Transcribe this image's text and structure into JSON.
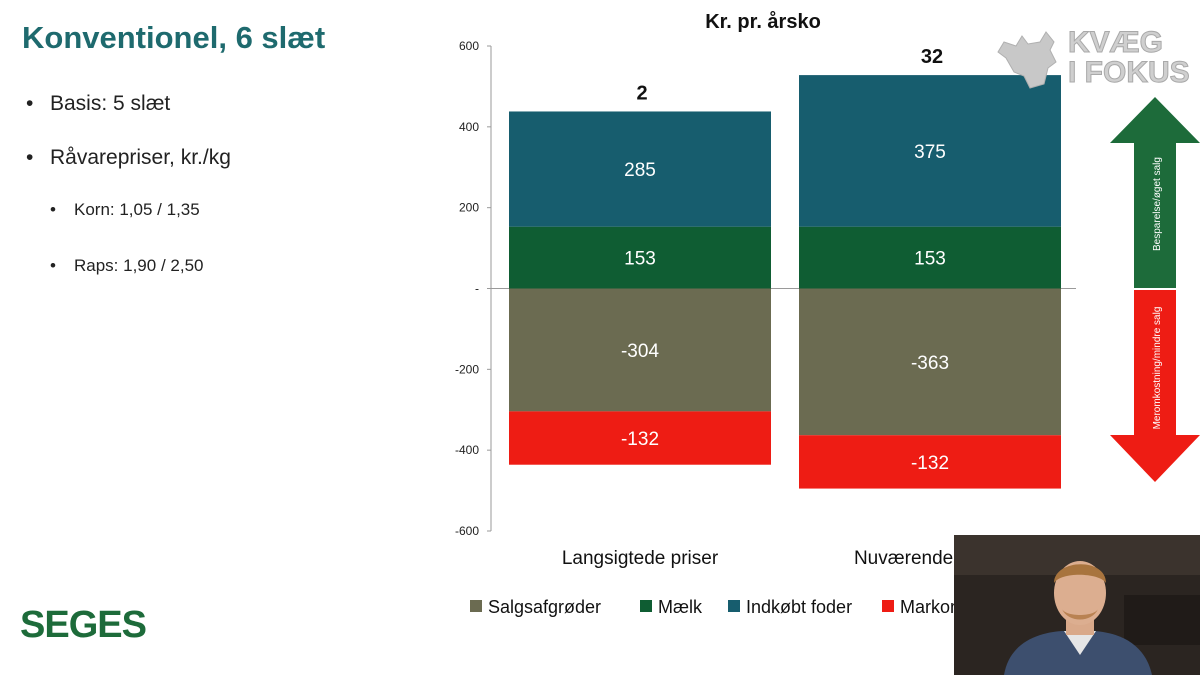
{
  "slide": {
    "title": "Konventionel, 6 slæt",
    "bullets": [
      {
        "text": "Basis: 5 slæt",
        "marker": "•"
      },
      {
        "text": "Råvarepriser, kr./kg",
        "marker": "•"
      },
      {
        "text": "Korn: 1,05 / 1,35",
        "marker": "•"
      },
      {
        "text": "Raps: 1,90 / 2,50",
        "marker": "•"
      }
    ],
    "brand": "SEGES"
  },
  "logo": {
    "line1": "KVÆG",
    "line2": "I FOKUS",
    "icon": "cow-head-icon"
  },
  "arrows": {
    "up_label": "Besparelse/øget salg",
    "down_label": "Meromkostning/mindre salg"
  },
  "webcam": {
    "description_icon": "presenter-video-icon"
  },
  "colors": {
    "Salgsafgrøder": "#6b6b51",
    "Mælk": "#0f5d33",
    "Indkøbt foder": "#175d6e",
    "Markomkostninger": "#ee1c14",
    "title_teal": "#1e6a6e",
    "seges_green": "#1d6b3a",
    "arrow_green": "#1d6b3a",
    "arrow_red": "#ee1c14"
  },
  "chart_data": {
    "type": "bar",
    "stacked": true,
    "title": "Kr. pr. årsko",
    "categories": [
      "Langsigtede priser",
      "Nuværende priser"
    ],
    "series": [
      {
        "name": "Mælk",
        "values": [
          153,
          153
        ],
        "labels": [
          "153",
          "153"
        ]
      },
      {
        "name": "Indkøbt foder",
        "values": [
          285,
          375
        ],
        "labels": [
          "285",
          "375"
        ]
      },
      {
        "name": "Salgsafgrøder",
        "values": [
          -304,
          -363
        ],
        "labels": [
          "-304",
          "-363"
        ]
      },
      {
        "name": "Markomkostninger",
        "values": [
          -132,
          -132
        ],
        "labels": [
          "-132",
          "-132"
        ]
      }
    ],
    "totals": [
      2,
      32
    ],
    "total_labels": [
      "2",
      "32"
    ],
    "legend_order": [
      "Salgsafgrøder",
      "Mælk",
      "Indkøbt foder",
      "Markomkostninger"
    ],
    "ylim": [
      -600,
      600
    ],
    "yticks": [
      600,
      400,
      200,
      0,
      -200,
      -400,
      -600
    ],
    "ytick_labels": [
      "600",
      "400",
      "200",
      "-",
      "-200",
      "-400",
      "-600"
    ],
    "legend_position": "bottom",
    "grid": false
  }
}
